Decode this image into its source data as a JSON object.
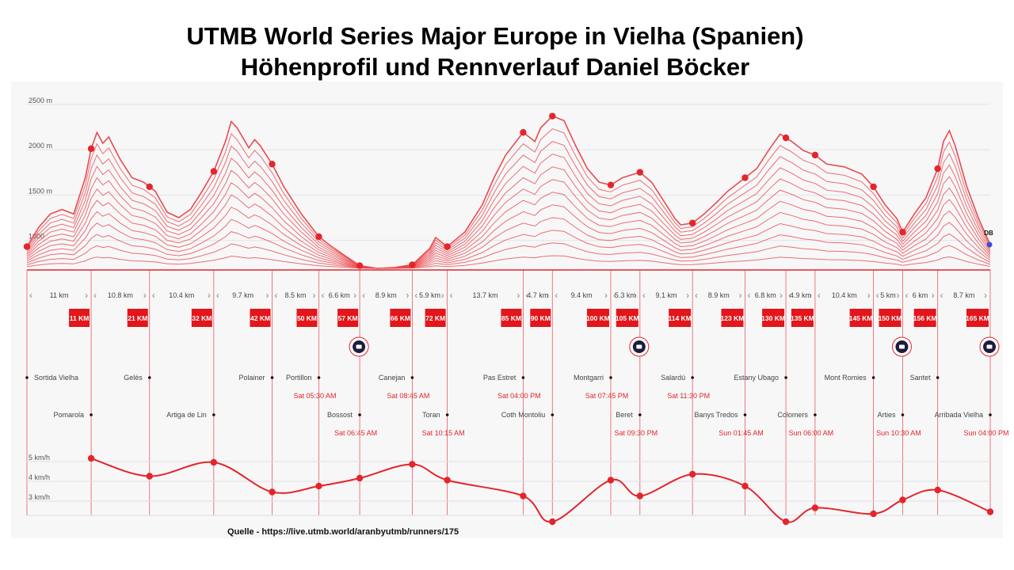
{
  "title": {
    "line1": "UTMB World Series Major Europe in Vielha (Spanien)",
    "line2": "Höhenprofil und Rennverlauf Daniel Böcker"
  },
  "source": "Quelle - https://live.utmb.world/aranbyutmb/runners/175",
  "colors": {
    "accent": "#e4252b",
    "line": "#e84b4f",
    "badge": "#e2161b",
    "text_gray": "#555555",
    "icon_dark": "#1c1c3c"
  },
  "chart_data": [
    {
      "type": "area",
      "name": "elevation-profile",
      "y_ticks": [
        "2500 m",
        "2000 m",
        "1500 m",
        "1000"
      ],
      "y_tick_values": [
        2500,
        2000,
        1500,
        1000
      ],
      "points": [
        [
          0,
          940
        ],
        [
          2,
          1150
        ],
        [
          4,
          1300
        ],
        [
          6,
          1350
        ],
        [
          8,
          1300
        ],
        [
          10,
          1700
        ],
        [
          11,
          2020
        ],
        [
          12,
          2200
        ],
        [
          13,
          2080
        ],
        [
          14,
          2150
        ],
        [
          16,
          1900
        ],
        [
          18,
          1700
        ],
        [
          20,
          1650
        ],
        [
          21,
          1600
        ],
        [
          22,
          1550
        ],
        [
          24,
          1320
        ],
        [
          26,
          1260
        ],
        [
          28,
          1350
        ],
        [
          30,
          1550
        ],
        [
          32,
          1770
        ],
        [
          34,
          2100
        ],
        [
          35,
          2320
        ],
        [
          36,
          2250
        ],
        [
          38,
          2030
        ],
        [
          39,
          2120
        ],
        [
          40,
          2050
        ],
        [
          42,
          1850
        ],
        [
          44,
          1600
        ],
        [
          47,
          1300
        ],
        [
          50,
          1050
        ],
        [
          52,
          950
        ],
        [
          54,
          860
        ],
        [
          57,
          730
        ],
        [
          60,
          700
        ],
        [
          63,
          710
        ],
        [
          66,
          740
        ],
        [
          69,
          920
        ],
        [
          70,
          1040
        ],
        [
          72,
          940
        ],
        [
          75,
          1100
        ],
        [
          78,
          1400
        ],
        [
          80,
          1700
        ],
        [
          82,
          1950
        ],
        [
          85,
          2200
        ],
        [
          87,
          2100
        ],
        [
          88,
          2250
        ],
        [
          90,
          2380
        ],
        [
          92,
          2330
        ],
        [
          94,
          2050
        ],
        [
          96,
          1800
        ],
        [
          98,
          1650
        ],
        [
          100,
          1620
        ],
        [
          102,
          1700
        ],
        [
          105,
          1760
        ],
        [
          107,
          1650
        ],
        [
          109,
          1450
        ],
        [
          111,
          1250
        ],
        [
          112,
          1180
        ],
        [
          114,
          1200
        ],
        [
          116,
          1300
        ],
        [
          118,
          1420
        ],
        [
          120,
          1550
        ],
        [
          123,
          1700
        ],
        [
          125,
          1800
        ],
        [
          127,
          2000
        ],
        [
          129,
          2180
        ],
        [
          131,
          2100
        ],
        [
          133,
          2000
        ],
        [
          135,
          1950
        ],
        [
          137,
          1850
        ],
        [
          140,
          1820
        ],
        [
          143,
          1740
        ],
        [
          145,
          1600
        ],
        [
          147,
          1400
        ],
        [
          149,
          1250
        ],
        [
          150,
          1100
        ],
        [
          152,
          1300
        ],
        [
          154,
          1480
        ],
        [
          156,
          1800
        ],
        [
          157,
          2100
        ],
        [
          158,
          2220
        ],
        [
          159,
          2050
        ],
        [
          161,
          1600
        ],
        [
          163,
          1250
        ],
        [
          165,
          960
        ]
      ]
    },
    {
      "type": "line",
      "name": "speed-profile",
      "y_ticks": [
        "5 km/h",
        "4 km/h",
        "3 km/h"
      ],
      "y_tick_values": [
        5,
        4,
        3
      ],
      "ylim": [
        2,
        5.8
      ],
      "points": [
        [
          11,
          5.2
        ],
        [
          21,
          4.3
        ],
        [
          32,
          5.0
        ],
        [
          42,
          3.5
        ],
        [
          50,
          3.8
        ],
        [
          57,
          4.2
        ],
        [
          66,
          4.9
        ],
        [
          72,
          4.1
        ],
        [
          85,
          3.3
        ],
        [
          90,
          2.0
        ],
        [
          100,
          4.1
        ],
        [
          105,
          3.3
        ],
        [
          114,
          4.4
        ],
        [
          123,
          3.8
        ],
        [
          130,
          2.0
        ],
        [
          135,
          2.7
        ],
        [
          145,
          2.4
        ],
        [
          150,
          3.1
        ],
        [
          156,
          3.6
        ],
        [
          165,
          2.5
        ]
      ]
    }
  ],
  "segments": [
    {
      "from": 0,
      "to": 11,
      "label": "11 km"
    },
    {
      "from": 11,
      "to": 21,
      "label": "10.8 km"
    },
    {
      "from": 21,
      "to": 32,
      "label": "10.4 km"
    },
    {
      "from": 32,
      "to": 42,
      "label": "9.7 km"
    },
    {
      "from": 42,
      "to": 50,
      "label": "8.5 km"
    },
    {
      "from": 50,
      "to": 57,
      "label": "6.6 km"
    },
    {
      "from": 57,
      "to": 66,
      "label": "8.9 km"
    },
    {
      "from": 66,
      "to": 72,
      "label": "5.9 km"
    },
    {
      "from": 72,
      "to": 85,
      "label": "13.7 km"
    },
    {
      "from": 85,
      "to": 90,
      "label": "4.7 km"
    },
    {
      "from": 90,
      "to": 100,
      "label": "9.4 km"
    },
    {
      "from": 100,
      "to": 105,
      "label": "5.3 km"
    },
    {
      "from": 105,
      "to": 114,
      "label": "9.1 km"
    },
    {
      "from": 114,
      "to": 123,
      "label": "8.9 km"
    },
    {
      "from": 123,
      "to": 130,
      "label": "6.8 km"
    },
    {
      "from": 130,
      "to": 135,
      "label": "4.9 km"
    },
    {
      "from": 135,
      "to": 145,
      "label": "10.4 km"
    },
    {
      "from": 145,
      "to": 150,
      "label": "5 km"
    },
    {
      "from": 150,
      "to": 156,
      "label": "6 km"
    },
    {
      "from": 156,
      "to": 165,
      "label": "8.7 km"
    }
  ],
  "checkpoints": [
    {
      "km": 0,
      "badge": "",
      "name": "Sortida Vielha",
      "time": "",
      "row": 1
    },
    {
      "km": 11,
      "badge": "11 KM",
      "name": "Pomarola",
      "time": "",
      "row": 2
    },
    {
      "km": 21,
      "badge": "21 KM",
      "name": "Gelès",
      "time": "",
      "row": 1
    },
    {
      "km": 32,
      "badge": "32 KM",
      "name": "Artiga de Lin",
      "time": "",
      "row": 2
    },
    {
      "km": 42,
      "badge": "42 KM",
      "name": "Polainer",
      "time": "",
      "row": 1
    },
    {
      "km": 50,
      "badge": "50 KM",
      "name": "Portillon",
      "time": "Sat 05:30 AM",
      "row": 1
    },
    {
      "km": 57,
      "badge": "57 KM",
      "name": "Bossost",
      "time": "Sat 06:45 AM",
      "row": 2
    },
    {
      "km": 66,
      "badge": "66 KM",
      "name": "Canejan",
      "time": "Sat 08:45 AM",
      "row": 1
    },
    {
      "km": 72,
      "badge": "72 KM",
      "name": "Toran",
      "time": "Sat 10:15 AM",
      "row": 2
    },
    {
      "km": 85,
      "badge": "85 KM",
      "name": "Pas Estret",
      "time": "Sat 04:00 PM",
      "row": 1
    },
    {
      "km": 90,
      "badge": "90 KM",
      "name": "Coth Montoliu",
      "time": "",
      "row": 2
    },
    {
      "km": 100,
      "badge": "100 KM",
      "name": "Montgarri",
      "time": "Sat 07:45 PM",
      "row": 1
    },
    {
      "km": 105,
      "badge": "105 KM",
      "name": "Beret",
      "time": "Sat 09:30 PM",
      "row": 2
    },
    {
      "km": 114,
      "badge": "114 KM",
      "name": "Salardú",
      "time": "Sat 11:30 PM",
      "row": 1
    },
    {
      "km": 123,
      "badge": "123 KM",
      "name": "Banys Tredos",
      "time": "Sun 01:45 AM",
      "row": 2
    },
    {
      "km": 130,
      "badge": "130 KM",
      "name": "Estany Ubago",
      "time": "",
      "row": 1
    },
    {
      "km": 135,
      "badge": "135 KM",
      "name": "Colomers",
      "time": "Sun 06:00 AM",
      "row": 2
    },
    {
      "km": 145,
      "badge": "145 KM",
      "name": "Mont Romies",
      "time": "",
      "row": 1
    },
    {
      "km": 150,
      "badge": "150 KM",
      "name": "Arties",
      "time": "Sun 10:30 AM",
      "row": 2
    },
    {
      "km": 156,
      "badge": "156 KM",
      "name": "Santet",
      "time": "",
      "row": 1
    },
    {
      "km": 165,
      "badge": "165 KM",
      "name": "Arribada Vielha",
      "time": "Sun 04:00 PM",
      "row": 2
    }
  ],
  "life_bases_km": [
    57,
    105,
    150,
    165
  ],
  "finish_marker": "DB"
}
